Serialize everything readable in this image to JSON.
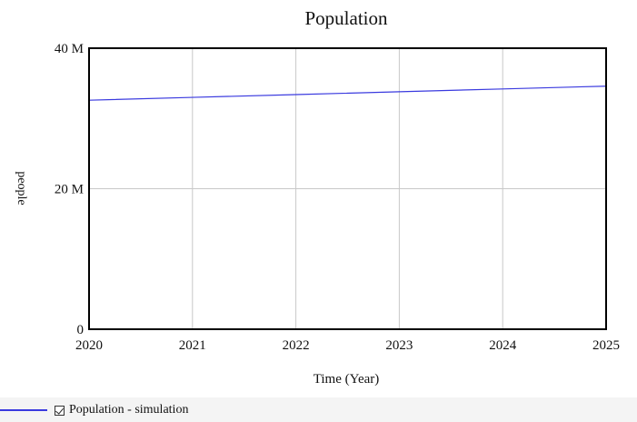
{
  "chart_data": {
    "type": "line",
    "title": "Population",
    "xlabel": "Time (Year)",
    "ylabel": "people",
    "xlim": [
      2020,
      2025
    ],
    "ylim": [
      0,
      40000000
    ],
    "x_ticks": [
      "2020",
      "2021",
      "2022",
      "2023",
      "2024",
      "2025"
    ],
    "y_ticks": [
      "0",
      "20 M",
      "40 M"
    ],
    "grid": true,
    "series": [
      {
        "name": "Population - simulation",
        "color": "#3a3adf",
        "x": [
          2020,
          2021,
          2022,
          2023,
          2024,
          2025
        ],
        "y": [
          32600000,
          33000000,
          33400000,
          33800000,
          34200000,
          34600000
        ]
      }
    ]
  },
  "legend": {
    "items": [
      {
        "label": "Population - simulation",
        "checked": true,
        "color": "#3a3adf"
      }
    ]
  }
}
